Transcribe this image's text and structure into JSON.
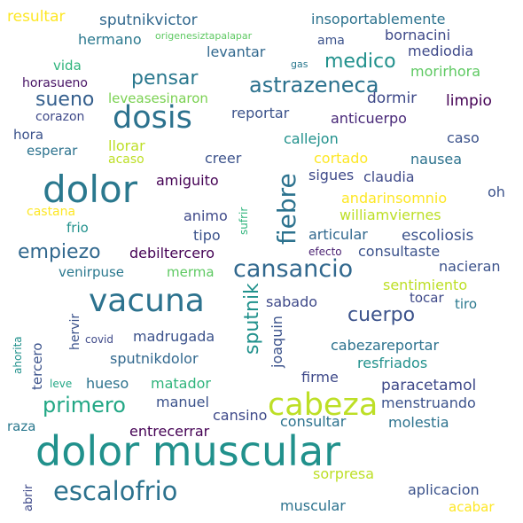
{
  "words": [
    {
      "key": "dolor-muscular",
      "text": "dolor muscular",
      "color": "#21918c"
    },
    {
      "key": "dolor",
      "text": "dolor",
      "color": "#2a788e"
    },
    {
      "key": "vacuna",
      "text": "vacuna",
      "color": "#2c728e"
    },
    {
      "key": "cabeza",
      "text": "cabeza",
      "color": "#bddf26"
    },
    {
      "key": "dosis",
      "text": "dosis",
      "color": "#2c728e"
    },
    {
      "key": "escalofrio",
      "text": "escalofrio",
      "color": "#2c728e"
    },
    {
      "key": "cansancio",
      "text": "cansancio",
      "color": "#31688e"
    },
    {
      "key": "fiebre",
      "text": "fiebre",
      "color": "#2c728e"
    },
    {
      "key": "astrazeneca",
      "text": "astrazeneca",
      "color": "#2c728e"
    },
    {
      "key": "empiezo",
      "text": "empiezo",
      "color": "#31688e"
    },
    {
      "key": "primero",
      "text": "primero",
      "color": "#22a785"
    },
    {
      "key": "pensar",
      "text": "pensar",
      "color": "#2a788e"
    },
    {
      "key": "medico",
      "text": "medico",
      "color": "#21918c"
    },
    {
      "key": "sueno",
      "text": "sueno",
      "color": "#355f8d"
    },
    {
      "key": "cuerpo",
      "text": "cuerpo",
      "color": "#3b528b"
    },
    {
      "key": "sputnik",
      "text": "sputnik",
      "color": "#21918c"
    },
    {
      "key": "escoliosis",
      "text": "escoliosis",
      "color": "#3b528b"
    },
    {
      "key": "paracetamol",
      "text": "paracetamol",
      "color": "#3e4989"
    },
    {
      "key": "resultar",
      "text": "resultar",
      "color": "#fde725"
    },
    {
      "key": "sputnikvictor",
      "text": "sputnikvictor",
      "color": "#31688e"
    },
    {
      "key": "insoportablemente",
      "text": "insoportablemente",
      "color": "#2c728e"
    },
    {
      "key": "bornacini",
      "text": "bornacini",
      "color": "#3e4989"
    },
    {
      "key": "hermano",
      "text": "hermano",
      "color": "#2a788e"
    },
    {
      "key": "origenesiztapalapar",
      "text": "origenesiztapalapar",
      "color": "#5ec962"
    },
    {
      "key": "ama",
      "text": "ama",
      "color": "#3b528b"
    },
    {
      "key": "mediodia",
      "text": "mediodia",
      "color": "#3e4989"
    },
    {
      "key": "levantar",
      "text": "levantar",
      "color": "#31688e"
    },
    {
      "key": "gas",
      "text": "gas",
      "color": "#2a788e"
    },
    {
      "key": "vida",
      "text": "vida",
      "color": "#2fb47c"
    },
    {
      "key": "morirhora",
      "text": "morirhora",
      "color": "#5ec962"
    },
    {
      "key": "horasueno",
      "text": "horasueno",
      "color": "#471365"
    },
    {
      "key": "leveasesinaron",
      "text": "leveasesinaron",
      "color": "#7ad151"
    },
    {
      "key": "dormir",
      "text": "dormir",
      "color": "#3e4989"
    },
    {
      "key": "limpio",
      "text": "limpio",
      "color": "#440154"
    },
    {
      "key": "corazon",
      "text": "corazon",
      "color": "#3e4989"
    },
    {
      "key": "reportar",
      "text": "reportar",
      "color": "#3b528b"
    },
    {
      "key": "anticuerpo",
      "text": "anticuerpo",
      "color": "#482878"
    },
    {
      "key": "hora",
      "text": "hora",
      "color": "#3b528b"
    },
    {
      "key": "callejon",
      "text": "callejon",
      "color": "#21918c"
    },
    {
      "key": "caso",
      "text": "caso",
      "color": "#3b528b"
    },
    {
      "key": "llorar",
      "text": "llorar",
      "color": "#bddf26"
    },
    {
      "key": "esperar",
      "text": "esperar",
      "color": "#2c728e"
    },
    {
      "key": "acaso",
      "text": "acaso",
      "color": "#bddf26"
    },
    {
      "key": "creer",
      "text": "creer",
      "color": "#3b528b"
    },
    {
      "key": "cortado",
      "text": "cortado",
      "color": "#fde725"
    },
    {
      "key": "nausea",
      "text": "nausea",
      "color": "#2c728e"
    },
    {
      "key": "sigues",
      "text": "sigues",
      "color": "#3e4989"
    },
    {
      "key": "claudia",
      "text": "claudia",
      "color": "#3e4989"
    },
    {
      "key": "amiguito",
      "text": "amiguito",
      "color": "#440154"
    },
    {
      "key": "oh",
      "text": "oh",
      "color": "#3b528b"
    },
    {
      "key": "andarinsomnio",
      "text": "andarinsomnio",
      "color": "#fde725"
    },
    {
      "key": "castana",
      "text": "castana",
      "color": "#fde725"
    },
    {
      "key": "sufrir",
      "text": "sufrir",
      "color": "#2fb47c"
    },
    {
      "key": "animo",
      "text": "animo",
      "color": "#3e4989"
    },
    {
      "key": "williamviernes",
      "text": "williamviernes",
      "color": "#bddf26"
    },
    {
      "key": "frio",
      "text": "frio",
      "color": "#21918c"
    },
    {
      "key": "tipo",
      "text": "tipo",
      "color": "#3b528b"
    },
    {
      "key": "articular",
      "text": "articular",
      "color": "#31688e"
    },
    {
      "key": "debiltercero",
      "text": "debiltercero",
      "color": "#440154"
    },
    {
      "key": "efecto",
      "text": "efecto",
      "color": "#481f70"
    },
    {
      "key": "consultaste",
      "text": "consultaste",
      "color": "#3b528b"
    },
    {
      "key": "venirpuse",
      "text": "venirpuse",
      "color": "#2a788e"
    },
    {
      "key": "merma",
      "text": "merma",
      "color": "#5ec962"
    },
    {
      "key": "nacieran",
      "text": "nacieran",
      "color": "#3b528b"
    },
    {
      "key": "sentimiento",
      "text": "sentimiento",
      "color": "#bddf26"
    },
    {
      "key": "tocar",
      "text": "tocar",
      "color": "#3e4989"
    },
    {
      "key": "sabado",
      "text": "sabado",
      "color": "#3e4989"
    },
    {
      "key": "tiro",
      "text": "tiro",
      "color": "#2a788e"
    },
    {
      "key": "hervir",
      "text": "hervir",
      "color": "#3b528b"
    },
    {
      "key": "madrugada",
      "text": "madrugada",
      "color": "#3b528b"
    },
    {
      "key": "ahorita",
      "text": "ahorita",
      "color": "#21918c"
    },
    {
      "key": "covid",
      "text": "covid",
      "color": "#3e4989"
    },
    {
      "key": "tercero",
      "text": "tercero",
      "color": "#3b528b"
    },
    {
      "key": "sputnikdolor",
      "text": "sputnikdolor",
      "color": "#31688e"
    },
    {
      "key": "joaquin",
      "text": "joaquin",
      "color": "#3b528b"
    },
    {
      "key": "cabezareportar",
      "text": "cabezareportar",
      "color": "#2c728e"
    },
    {
      "key": "resfriados",
      "text": "resfriados",
      "color": "#21918c"
    },
    {
      "key": "leve",
      "text": "leve",
      "color": "#22a785"
    },
    {
      "key": "hueso",
      "text": "hueso",
      "color": "#2c728e"
    },
    {
      "key": "matador",
      "text": "matador",
      "color": "#2fb47c"
    },
    {
      "key": "firme",
      "text": "firme",
      "color": "#3e4989"
    },
    {
      "key": "manuel",
      "text": "manuel",
      "color": "#3b528b"
    },
    {
      "key": "menstruando",
      "text": "menstruando",
      "color": "#3b528b"
    },
    {
      "key": "cansino",
      "text": "cansino",
      "color": "#3e4989"
    },
    {
      "key": "raza",
      "text": "raza",
      "color": "#2a788e"
    },
    {
      "key": "consultar",
      "text": "consultar",
      "color": "#2c728e"
    },
    {
      "key": "molestia",
      "text": "molestia",
      "color": "#2c728e"
    },
    {
      "key": "entrecerrar",
      "text": "entrecerrar",
      "color": "#440154"
    },
    {
      "key": "abrir",
      "text": "abrir",
      "color": "#3e4989"
    },
    {
      "key": "sorpresa",
      "text": "sorpresa",
      "color": "#bddf26"
    },
    {
      "key": "aplicacion",
      "text": "aplicacion",
      "color": "#3b528b"
    },
    {
      "key": "muscular",
      "text": "muscular",
      "color": "#2c728e"
    },
    {
      "key": "acabar",
      "text": "acabar",
      "color": "#fde725"
    }
  ]
}
